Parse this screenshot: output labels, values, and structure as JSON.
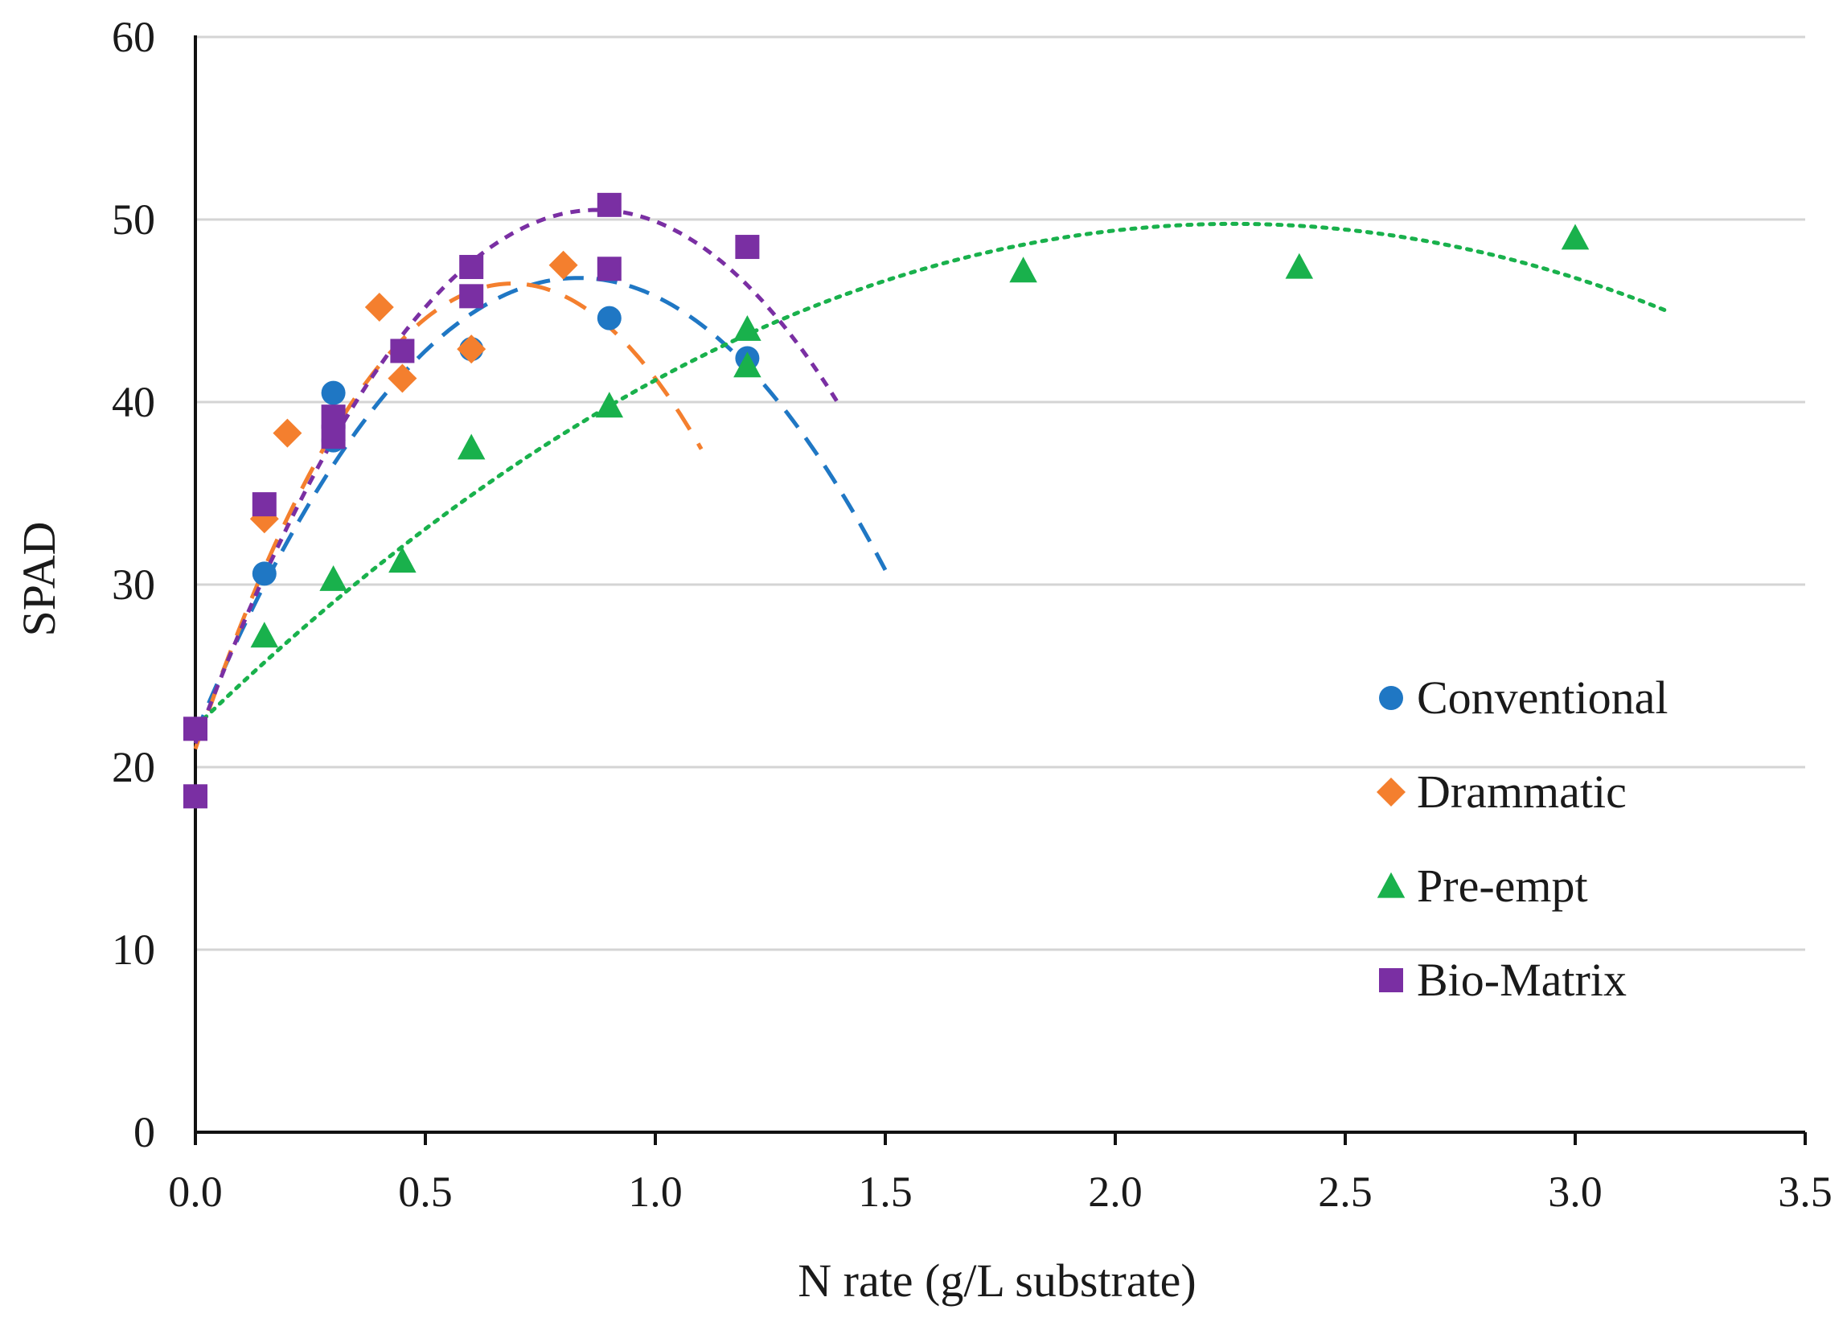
{
  "chart_data": {
    "type": "scatter",
    "title": "",
    "xlabel": "N rate (g/L substrate)",
    "ylabel": "SPAD",
    "xlim": [
      0,
      3.5
    ],
    "ylim": [
      0,
      60
    ],
    "x_ticks": [
      0,
      0.5,
      1.0,
      1.5,
      2.0,
      2.5,
      3.0,
      3.5
    ],
    "x_tick_labels": [
      "0.0",
      "0.5",
      "1.0",
      "1.5",
      "2.0",
      "2.5",
      "3.0",
      "3.5"
    ],
    "y_ticks": [
      0,
      10,
      20,
      30,
      40,
      50,
      60
    ],
    "y_tick_labels": [
      "0",
      "10",
      "20",
      "30",
      "40",
      "50",
      "60"
    ],
    "grid": "horizontal",
    "legend_position": "right",
    "series": [
      {
        "name": "Conventional",
        "color": "#1f77c4",
        "marker": "circle",
        "trendline": "dashed-long",
        "points": [
          [
            0.15,
            30.6
          ],
          [
            0.3,
            40.5
          ],
          [
            0.3,
            37.9
          ],
          [
            0.6,
            42.9
          ],
          [
            0.9,
            44.6
          ],
          [
            1.2,
            42.4
          ]
        ],
        "fit": {
          "a": -36.0,
          "b": 60.0,
          "c": 21.8,
          "x_range": [
            0,
            1.5
          ]
        }
      },
      {
        "name": "Drammatic",
        "color": "#f47f2e",
        "marker": "diamond",
        "trendline": "dashed",
        "points": [
          [
            0.15,
            33.6
          ],
          [
            0.2,
            38.3
          ],
          [
            0.4,
            45.2
          ],
          [
            0.45,
            41.3
          ],
          [
            0.6,
            42.9
          ],
          [
            0.8,
            47.5
          ]
        ],
        "fit": {
          "a": -53.7,
          "b": 74.0,
          "c": 21.0,
          "x_range": [
            0,
            1.1
          ]
        }
      },
      {
        "name": "Pre-empt",
        "color": "#19b14c",
        "marker": "triangle",
        "trendline": "dotted",
        "points": [
          [
            0.15,
            27.2
          ],
          [
            0.3,
            30.3
          ],
          [
            0.45,
            31.3
          ],
          [
            0.6,
            37.5
          ],
          [
            0.9,
            39.8
          ],
          [
            1.2,
            44.0
          ],
          [
            1.2,
            42.0
          ],
          [
            1.8,
            47.2
          ],
          [
            2.4,
            47.4
          ],
          [
            3.0,
            49.0
          ]
        ],
        "fit": {
          "a": -5.4,
          "b": 24.4,
          "c": 22.2,
          "x_range": [
            0,
            3.2
          ]
        }
      },
      {
        "name": "Bio-Matrix",
        "color": "#7a2fa3",
        "marker": "square",
        "trendline": "dashed-short",
        "points": [
          [
            0,
            22.1
          ],
          [
            0,
            18.4
          ],
          [
            0.15,
            34.4
          ],
          [
            0.3,
            39.2
          ],
          [
            0.3,
            38.1
          ],
          [
            0.45,
            42.8
          ],
          [
            0.6,
            47.4
          ],
          [
            0.6,
            45.8
          ],
          [
            0.9,
            50.8
          ],
          [
            0.9,
            47.3
          ],
          [
            1.2,
            48.5
          ]
        ],
        "fit": {
          "a": -38.4,
          "b": 67.0,
          "c": 21.3,
          "x_range": [
            0,
            1.4
          ]
        }
      }
    ]
  }
}
